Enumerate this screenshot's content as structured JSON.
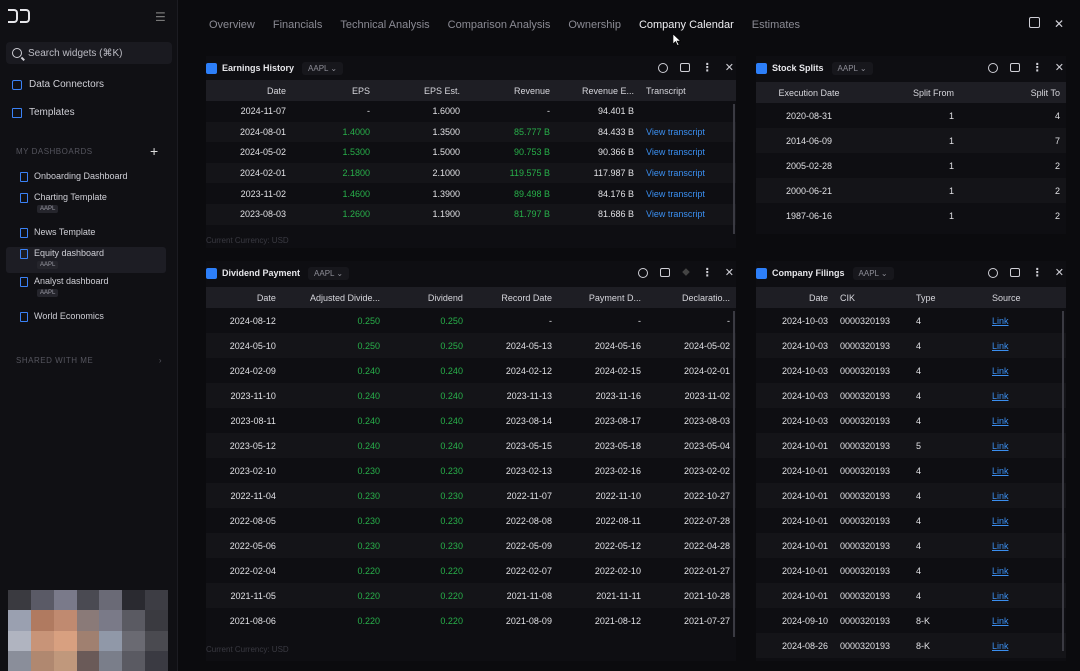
{
  "sidebar": {
    "search_placeholder": "Search widgets (⌘K)",
    "data_connectors": "Data Connectors",
    "templates": "Templates",
    "my_dashboards": "MY DASHBOARDS",
    "dashboards": [
      {
        "label": "Onboarding Dashboard",
        "tag": ""
      },
      {
        "label": "Charting Template",
        "tag": "AAPL"
      },
      {
        "label": "News Template",
        "tag": ""
      },
      {
        "label": "Equity dashboard",
        "tag": "AAPL"
      },
      {
        "label": "Analyst dashboard",
        "tag": "AAPL"
      },
      {
        "label": "World Economics",
        "tag": ""
      }
    ],
    "shared_with_me": "SHARED WITH ME"
  },
  "tabs": [
    "Overview",
    "Financials",
    "Technical Analysis",
    "Comparison Analysis",
    "Ownership",
    "Company Calendar",
    "Estimates"
  ],
  "active_tab": "Company Calendar",
  "earnings": {
    "title": "Earnings History",
    "ticker": "AAPL",
    "columns": [
      "Date",
      "EPS",
      "EPS Est.",
      "Revenue",
      "Revenue E...",
      "Transcript"
    ],
    "rows": [
      [
        "2024-11-07",
        "-",
        "1.6000",
        "-",
        "94.401 B",
        ""
      ],
      [
        "2024-08-01",
        "1.4000",
        "1.3500",
        "85.777 B",
        "84.433 B",
        "View transcript"
      ],
      [
        "2024-05-02",
        "1.5300",
        "1.5000",
        "90.753 B",
        "90.366 B",
        "View transcript"
      ],
      [
        "2024-02-01",
        "2.1800",
        "2.1000",
        "119.575 B",
        "117.987 B",
        "View transcript"
      ],
      [
        "2023-11-02",
        "1.4600",
        "1.3900",
        "89.498 B",
        "84.176 B",
        "View transcript"
      ],
      [
        "2023-08-03",
        "1.2600",
        "1.1900",
        "81.797 B",
        "81.686 B",
        "View transcript"
      ]
    ],
    "currency": "Current Currency: USD"
  },
  "splits": {
    "title": "Stock Splits",
    "ticker": "AAPL",
    "columns": [
      "Execution Date",
      "Split From",
      "Split To"
    ],
    "rows": [
      [
        "2020-08-31",
        "1",
        "4"
      ],
      [
        "2014-06-09",
        "1",
        "7"
      ],
      [
        "2005-02-28",
        "1",
        "2"
      ],
      [
        "2000-06-21",
        "1",
        "2"
      ],
      [
        "1987-06-16",
        "1",
        "2"
      ]
    ]
  },
  "dividends": {
    "title": "Dividend Payment",
    "ticker": "AAPL",
    "columns": [
      "Date",
      "Adjusted Divide...",
      "Dividend",
      "Record Date",
      "Payment D...",
      "Declaratio..."
    ],
    "rows": [
      [
        "2024-08-12",
        "0.250",
        "0.250",
        "-",
        "-",
        "-"
      ],
      [
        "2024-05-10",
        "0.250",
        "0.250",
        "2024-05-13",
        "2024-05-16",
        "2024-05-02"
      ],
      [
        "2024-02-09",
        "0.240",
        "0.240",
        "2024-02-12",
        "2024-02-15",
        "2024-02-01"
      ],
      [
        "2023-11-10",
        "0.240",
        "0.240",
        "2023-11-13",
        "2023-11-16",
        "2023-11-02"
      ],
      [
        "2023-08-11",
        "0.240",
        "0.240",
        "2023-08-14",
        "2023-08-17",
        "2023-08-03"
      ],
      [
        "2023-05-12",
        "0.240",
        "0.240",
        "2023-05-15",
        "2023-05-18",
        "2023-05-04"
      ],
      [
        "2023-02-10",
        "0.230",
        "0.230",
        "2023-02-13",
        "2023-02-16",
        "2023-02-02"
      ],
      [
        "2022-11-04",
        "0.230",
        "0.230",
        "2022-11-07",
        "2022-11-10",
        "2022-10-27"
      ],
      [
        "2022-08-05",
        "0.230",
        "0.230",
        "2022-08-08",
        "2022-08-11",
        "2022-07-28"
      ],
      [
        "2022-05-06",
        "0.230",
        "0.230",
        "2022-05-09",
        "2022-05-12",
        "2022-04-28"
      ],
      [
        "2022-02-04",
        "0.220",
        "0.220",
        "2022-02-07",
        "2022-02-10",
        "2022-01-27"
      ],
      [
        "2021-11-05",
        "0.220",
        "0.220",
        "2021-11-08",
        "2021-11-11",
        "2021-10-28"
      ],
      [
        "2021-08-06",
        "0.220",
        "0.220",
        "2021-08-09",
        "2021-08-12",
        "2021-07-27"
      ]
    ],
    "currency": "Current Currency: USD"
  },
  "filings": {
    "title": "Company Filings",
    "ticker": "AAPL",
    "columns": [
      "Date",
      "CIK",
      "Type",
      "Source"
    ],
    "rows": [
      [
        "2024-10-03",
        "0000320193",
        "4",
        "Link"
      ],
      [
        "2024-10-03",
        "0000320193",
        "4",
        "Link"
      ],
      [
        "2024-10-03",
        "0000320193",
        "4",
        "Link"
      ],
      [
        "2024-10-03",
        "0000320193",
        "4",
        "Link"
      ],
      [
        "2024-10-03",
        "0000320193",
        "4",
        "Link"
      ],
      [
        "2024-10-01",
        "0000320193",
        "5",
        "Link"
      ],
      [
        "2024-10-01",
        "0000320193",
        "4",
        "Link"
      ],
      [
        "2024-10-01",
        "0000320193",
        "4",
        "Link"
      ],
      [
        "2024-10-01",
        "0000320193",
        "4",
        "Link"
      ],
      [
        "2024-10-01",
        "0000320193",
        "4",
        "Link"
      ],
      [
        "2024-10-01",
        "0000320193",
        "4",
        "Link"
      ],
      [
        "2024-10-01",
        "0000320193",
        "4",
        "Link"
      ],
      [
        "2024-09-10",
        "0000320193",
        "8-K",
        "Link"
      ],
      [
        "2024-08-26",
        "0000320193",
        "8-K",
        "Link"
      ]
    ]
  },
  "colors": {
    "accent": "#2d7ff9",
    "positive": "#28b04a",
    "link": "#3b8ff0"
  }
}
